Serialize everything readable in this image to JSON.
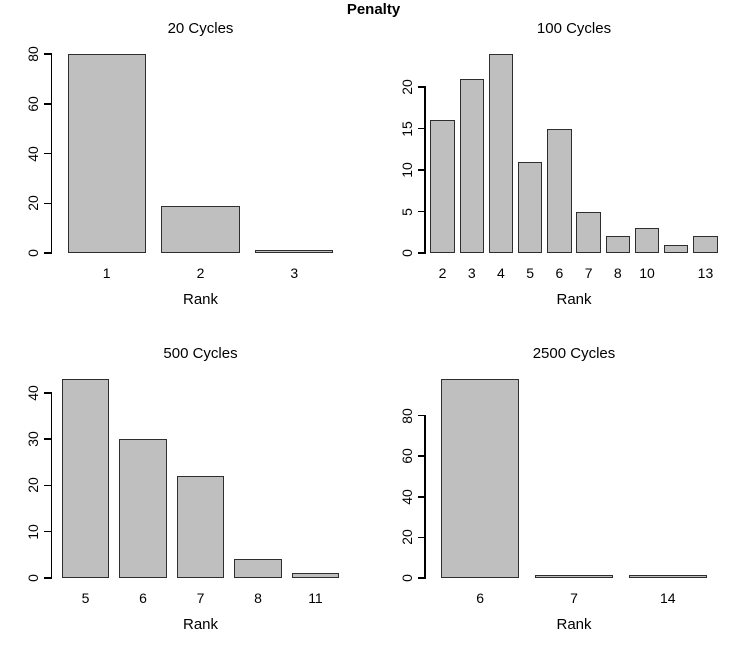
{
  "figure": {
    "title": "Penalty",
    "background": "#ffffff",
    "colors": {
      "bar_fill": "#bfbfbf",
      "bar_border": "#2e2e2e",
      "axis": "#000000"
    }
  },
  "chart_data": [
    {
      "type": "bar",
      "title": "20 Cycles",
      "xlabel": "Rank",
      "categories": [
        "1",
        "2",
        "3"
      ],
      "values": [
        80,
        19,
        1
      ],
      "yticks": [
        0,
        20,
        40,
        60,
        80
      ],
      "ylim": [
        0,
        80
      ],
      "grid": false,
      "legend": false
    },
    {
      "type": "bar",
      "title": "100 Cycles",
      "xlabel": "Rank",
      "categories": [
        "2",
        "3",
        "4",
        "5",
        "6",
        "7",
        "8",
        "10",
        "",
        "13"
      ],
      "values": [
        16,
        21,
        24,
        11,
        15,
        5,
        2,
        3,
        1,
        2
      ],
      "yticks": [
        0,
        5,
        10,
        15,
        20
      ],
      "ylim": [
        0,
        24
      ],
      "grid": false,
      "legend": false
    },
    {
      "type": "bar",
      "title": "500 Cycles",
      "xlabel": "Rank",
      "categories": [
        "5",
        "6",
        "7",
        "8",
        "11"
      ],
      "values": [
        43,
        30,
        22,
        4,
        1
      ],
      "yticks": [
        0,
        10,
        20,
        30,
        40
      ],
      "ylim": [
        0,
        43
      ],
      "grid": false,
      "legend": false
    },
    {
      "type": "bar",
      "title": "2500 Cycles",
      "xlabel": "Rank",
      "categories": [
        "6",
        "7",
        "14"
      ],
      "values": [
        98,
        1,
        1
      ],
      "yticks": [
        0,
        20,
        40,
        60,
        80
      ],
      "ylim": [
        0,
        98
      ],
      "grid": false,
      "legend": false
    }
  ]
}
